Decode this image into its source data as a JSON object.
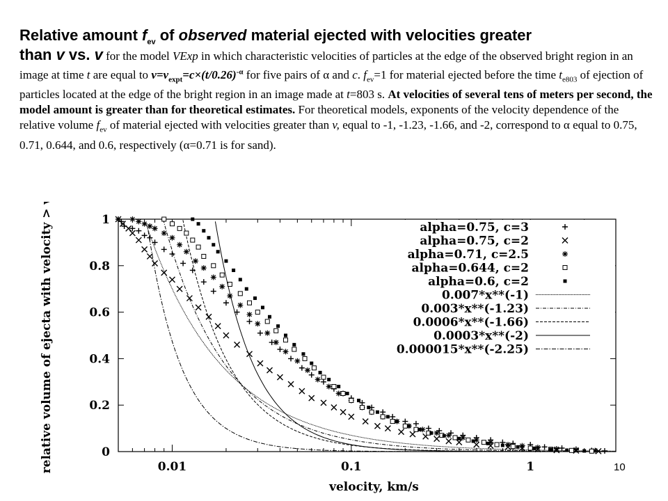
{
  "header": {
    "l1_a": "Relative amount ",
    "l1_f": "f",
    "l1_sub": "ev",
    "l1_b": " of ",
    "l1_obs": "observed",
    "l1_c": " material ejected with velocities greater",
    "l2_than": "than ",
    "l2_v1": "v",
    "l2_vs": " vs. ",
    "l2_v2": "v",
    "d1": " for the model ",
    "d_vexp": "VExp",
    "d2": " in which characteristic velocities of particles at the edge of the observed bright region in an image at time ",
    "d_t": "t",
    "d3": " are equal to ",
    "d_form_v": "v=v",
    "d_form_sub": "expt",
    "d_form_rest": "=c×(t/0.26)",
    "d_form_sup": "-α",
    "d4": " for five pairs of α and ",
    "d_c": "c",
    "d5": ". ",
    "d_f2": "f",
    "d_f2_sub": "ev",
    "d6": "=1 for material ejected before the time ",
    "d_te": "t",
    "d_te_sub": "e803",
    "d7": " of ejection of particles located at the edge of the bright region in an image made at ",
    "d_t2": "t",
    "d8": "=803 s. ",
    "d_bold": "At velocities of several tens of meters per second, the model amount is greater than for theoretical estimates.",
    "d9": " For theoretical models, exponents of the velocity dependence of the relative volume ",
    "d_f3": "f",
    "d_f3_sub": "ev",
    "d10": " of material ejected with velocities greater than ",
    "d_v3": "v,",
    "d11": " equal to -1, -1.23, -1.66, and -2, correspond to α  equal to 0.75, 0.71, 0.644, and 0.6, respectively (α=0.71 is for sand)."
  },
  "page_number": "10",
  "chart_data": {
    "type": "scatter",
    "xlabel": "velocity, km/s",
    "ylabel": "relative volume of ejecta with velocity > v",
    "x_scale": "log",
    "xlim": [
      0.005,
      3
    ],
    "ylim": [
      0,
      1
    ],
    "x_ticks": [
      {
        "v": 0.01,
        "label": "0.01"
      },
      {
        "v": 0.1,
        "label": "0.1"
      },
      {
        "v": 1,
        "label": "1"
      }
    ],
    "y_ticks": [
      {
        "v": 0,
        "label": "0"
      },
      {
        "v": 0.2,
        "label": "0.2"
      },
      {
        "v": 0.4,
        "label": "0.4"
      },
      {
        "v": 0.6,
        "label": "0.6"
      },
      {
        "v": 0.8,
        "label": "0.8"
      },
      {
        "v": 1,
        "label": "1"
      }
    ],
    "legend_position": "top-right",
    "series": [
      {
        "name": "alpha=0.75, c=3",
        "marker": "plus",
        "points": [
          [
            0.005,
            1.0
          ],
          [
            0.0052,
            0.99
          ],
          [
            0.0054,
            0.97
          ],
          [
            0.006,
            0.96
          ],
          [
            0.0065,
            0.95
          ],
          [
            0.007,
            0.93
          ],
          [
            0.0075,
            0.92
          ],
          [
            0.008,
            0.9
          ],
          [
            0.009,
            0.87
          ],
          [
            0.01,
            0.85
          ],
          [
            0.0115,
            0.81
          ],
          [
            0.013,
            0.78
          ],
          [
            0.015,
            0.73
          ],
          [
            0.017,
            0.69
          ],
          [
            0.02,
            0.64
          ],
          [
            0.023,
            0.6
          ],
          [
            0.027,
            0.56
          ],
          [
            0.031,
            0.51
          ],
          [
            0.036,
            0.47
          ],
          [
            0.04,
            0.44
          ],
          [
            0.046,
            0.4
          ],
          [
            0.053,
            0.36
          ],
          [
            0.06,
            0.33
          ],
          [
            0.07,
            0.3
          ],
          [
            0.08,
            0.27
          ],
          [
            0.09,
            0.25
          ],
          [
            0.1,
            0.23
          ],
          [
            0.115,
            0.21
          ],
          [
            0.13,
            0.19
          ],
          [
            0.15,
            0.17
          ],
          [
            0.17,
            0.15
          ],
          [
            0.2,
            0.13
          ],
          [
            0.23,
            0.12
          ],
          [
            0.27,
            0.1
          ],
          [
            0.31,
            0.09
          ],
          [
            0.36,
            0.08
          ],
          [
            0.42,
            0.07
          ],
          [
            0.5,
            0.06
          ],
          [
            0.6,
            0.05
          ],
          [
            0.7,
            0.04
          ],
          [
            0.8,
            0.035
          ],
          [
            1.0,
            0.03
          ],
          [
            1.2,
            0.02
          ],
          [
            1.5,
            0.015
          ],
          [
            1.8,
            0.01
          ],
          [
            2.2,
            0.005
          ],
          [
            2.6,
            0.003
          ]
        ]
      },
      {
        "name": "alpha=0.75, c=2",
        "marker": "x",
        "points": [
          [
            0.005,
            1.0
          ],
          [
            0.0053,
            0.98
          ],
          [
            0.0057,
            0.96
          ],
          [
            0.006,
            0.94
          ],
          [
            0.0065,
            0.91
          ],
          [
            0.007,
            0.87
          ],
          [
            0.0075,
            0.84
          ],
          [
            0.008,
            0.81
          ],
          [
            0.009,
            0.77
          ],
          [
            0.01,
            0.74
          ],
          [
            0.011,
            0.7
          ],
          [
            0.0125,
            0.66
          ],
          [
            0.014,
            0.62
          ],
          [
            0.016,
            0.58
          ],
          [
            0.018,
            0.54
          ],
          [
            0.02,
            0.5
          ],
          [
            0.023,
            0.46
          ],
          [
            0.027,
            0.42
          ],
          [
            0.031,
            0.38
          ],
          [
            0.035,
            0.35
          ],
          [
            0.04,
            0.32
          ],
          [
            0.046,
            0.29
          ],
          [
            0.053,
            0.26
          ],
          [
            0.06,
            0.23
          ],
          [
            0.07,
            0.21
          ],
          [
            0.08,
            0.19
          ],
          [
            0.09,
            0.17
          ],
          [
            0.1,
            0.15
          ],
          [
            0.12,
            0.13
          ],
          [
            0.14,
            0.11
          ],
          [
            0.16,
            0.1
          ],
          [
            0.19,
            0.085
          ],
          [
            0.22,
            0.075
          ],
          [
            0.26,
            0.065
          ],
          [
            0.3,
            0.055
          ],
          [
            0.35,
            0.045
          ],
          [
            0.4,
            0.04
          ],
          [
            0.5,
            0.03
          ],
          [
            0.6,
            0.025
          ],
          [
            0.75,
            0.02
          ],
          [
            0.9,
            0.015
          ],
          [
            1.1,
            0.01
          ],
          [
            1.4,
            0.006
          ],
          [
            1.8,
            0.004
          ],
          [
            2.4,
            0.002
          ]
        ]
      },
      {
        "name": "alpha=0.71, c=2.5",
        "marker": "star",
        "points": [
          [
            0.006,
            1.0
          ],
          [
            0.0065,
            0.99
          ],
          [
            0.007,
            0.98
          ],
          [
            0.0075,
            0.97
          ],
          [
            0.008,
            0.96
          ],
          [
            0.009,
            0.94
          ],
          [
            0.01,
            0.92
          ],
          [
            0.011,
            0.89
          ],
          [
            0.012,
            0.86
          ],
          [
            0.0135,
            0.82
          ],
          [
            0.015,
            0.79
          ],
          [
            0.017,
            0.75
          ],
          [
            0.019,
            0.71
          ],
          [
            0.021,
            0.67
          ],
          [
            0.024,
            0.63
          ],
          [
            0.027,
            0.59
          ],
          [
            0.03,
            0.55
          ],
          [
            0.034,
            0.51
          ],
          [
            0.038,
            0.47
          ],
          [
            0.043,
            0.43
          ],
          [
            0.05,
            0.39
          ],
          [
            0.057,
            0.35
          ],
          [
            0.065,
            0.31
          ],
          [
            0.075,
            0.28
          ],
          [
            0.085,
            0.25
          ],
          [
            0.1,
            0.22
          ],
          [
            0.115,
            0.19
          ],
          [
            0.13,
            0.17
          ],
          [
            0.15,
            0.15
          ],
          [
            0.18,
            0.13
          ],
          [
            0.21,
            0.11
          ],
          [
            0.25,
            0.095
          ],
          [
            0.3,
            0.08
          ],
          [
            0.35,
            0.07
          ],
          [
            0.42,
            0.06
          ],
          [
            0.5,
            0.05
          ],
          [
            0.6,
            0.04
          ],
          [
            0.75,
            0.03
          ],
          [
            0.9,
            0.025
          ],
          [
            1.1,
            0.018
          ],
          [
            1.4,
            0.012
          ],
          [
            1.8,
            0.008
          ],
          [
            2.3,
            0.004
          ]
        ]
      },
      {
        "name": "alpha=0.644, c=2",
        "marker": "square",
        "points": [
          [
            0.009,
            1.0
          ],
          [
            0.01,
            0.98
          ],
          [
            0.011,
            0.96
          ],
          [
            0.012,
            0.94
          ],
          [
            0.013,
            0.91
          ],
          [
            0.014,
            0.88
          ],
          [
            0.015,
            0.84
          ],
          [
            0.017,
            0.8
          ],
          [
            0.019,
            0.76
          ],
          [
            0.021,
            0.72
          ],
          [
            0.024,
            0.68
          ],
          [
            0.027,
            0.64
          ],
          [
            0.03,
            0.6
          ],
          [
            0.034,
            0.56
          ],
          [
            0.038,
            0.52
          ],
          [
            0.043,
            0.48
          ],
          [
            0.048,
            0.44
          ],
          [
            0.055,
            0.4
          ],
          [
            0.062,
            0.36
          ],
          [
            0.07,
            0.32
          ],
          [
            0.08,
            0.28
          ],
          [
            0.09,
            0.25
          ],
          [
            0.1,
            0.22
          ],
          [
            0.115,
            0.19
          ],
          [
            0.13,
            0.17
          ],
          [
            0.15,
            0.15
          ],
          [
            0.17,
            0.13
          ],
          [
            0.2,
            0.11
          ],
          [
            0.23,
            0.095
          ],
          [
            0.27,
            0.08
          ],
          [
            0.32,
            0.07
          ],
          [
            0.38,
            0.06
          ],
          [
            0.45,
            0.05
          ],
          [
            0.55,
            0.04
          ],
          [
            0.65,
            0.03
          ],
          [
            0.8,
            0.022
          ],
          [
            1.0,
            0.015
          ],
          [
            1.3,
            0.01
          ],
          [
            1.7,
            0.005
          ],
          [
            2.2,
            0.002
          ]
        ]
      },
      {
        "name": "alpha=0.6, c=2",
        "marker": "dot",
        "points": [
          [
            0.013,
            1.0
          ],
          [
            0.014,
            0.98
          ],
          [
            0.015,
            0.95
          ],
          [
            0.016,
            0.92
          ],
          [
            0.017,
            0.89
          ],
          [
            0.018,
            0.86
          ],
          [
            0.02,
            0.82
          ],
          [
            0.022,
            0.78
          ],
          [
            0.024,
            0.74
          ],
          [
            0.026,
            0.7
          ],
          [
            0.029,
            0.66
          ],
          [
            0.032,
            0.62
          ],
          [
            0.035,
            0.58
          ],
          [
            0.039,
            0.54
          ],
          [
            0.043,
            0.5
          ],
          [
            0.048,
            0.46
          ],
          [
            0.054,
            0.42
          ],
          [
            0.06,
            0.38
          ],
          [
            0.067,
            0.34
          ],
          [
            0.075,
            0.31
          ],
          [
            0.085,
            0.28
          ],
          [
            0.095,
            0.25
          ],
          [
            0.11,
            0.22
          ],
          [
            0.125,
            0.19
          ],
          [
            0.14,
            0.17
          ],
          [
            0.16,
            0.15
          ],
          [
            0.18,
            0.13
          ],
          [
            0.21,
            0.11
          ],
          [
            0.24,
            0.095
          ],
          [
            0.28,
            0.08
          ],
          [
            0.33,
            0.068
          ],
          [
            0.4,
            0.056
          ],
          [
            0.48,
            0.045
          ],
          [
            0.58,
            0.035
          ],
          [
            0.7,
            0.027
          ],
          [
            0.85,
            0.02
          ],
          [
            1.05,
            0.014
          ],
          [
            1.3,
            0.009
          ],
          [
            1.6,
            0.006
          ],
          [
            2.0,
            0.003
          ]
        ]
      }
    ],
    "curves": [
      {
        "name": "0.007*x**(-1)",
        "coef": 0.007,
        "exp": -1,
        "style": "dense-dot"
      },
      {
        "name": "0.003*x**(-1.23)",
        "coef": 0.003,
        "exp": -1.23,
        "style": "dot-dash"
      },
      {
        "name": "0.0006*x**(-1.66)",
        "coef": 0.0006,
        "exp": -1.66,
        "style": "dash"
      },
      {
        "name": "0.0003*x**(-2)",
        "coef": 0.0003,
        "exp": -2,
        "style": "solid"
      },
      {
        "name": "0.000015*x**(-2.25)",
        "coef": 1.5e-05,
        "exp": -2.25,
        "style": "dash-dot"
      }
    ]
  }
}
